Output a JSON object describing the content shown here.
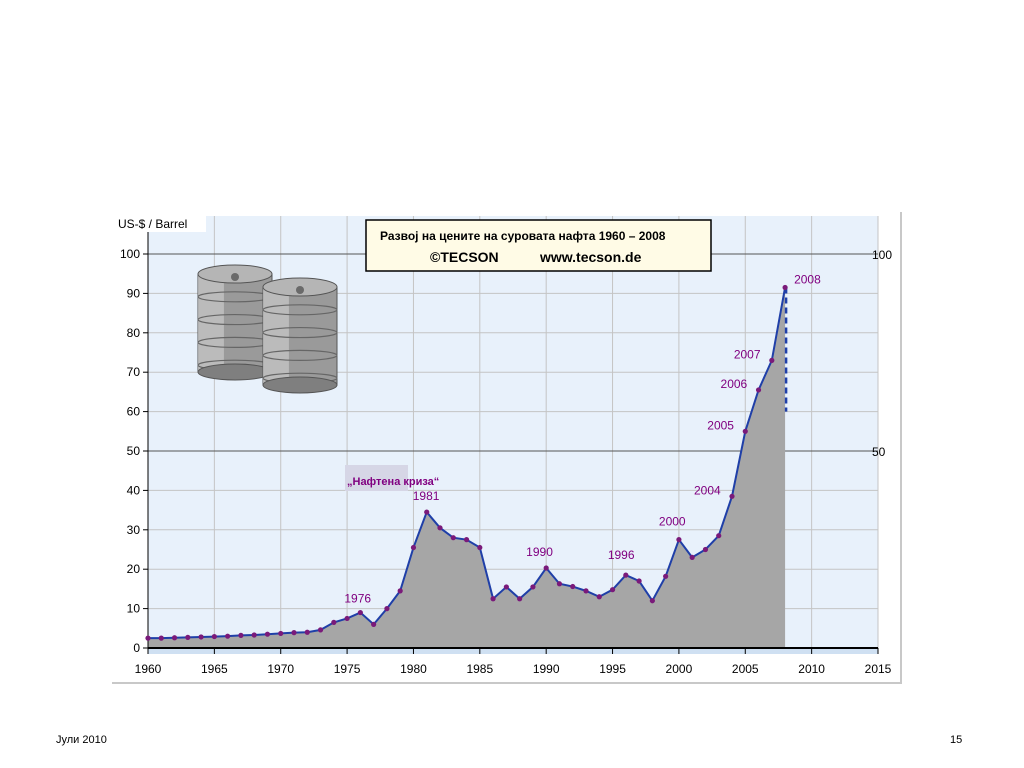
{
  "footer": {
    "date": "Јули 2010",
    "page": "15"
  },
  "colors": {
    "plot_bg": "#e8f1fb",
    "area_fill": "#a6a6a6",
    "line": "#1f3fa8",
    "marker": "#7a1a7a",
    "year_label": "#800080",
    "title_box_bg": "#fffbe6"
  },
  "chart_data": {
    "type": "area",
    "title": "Развој на цените на суровата нафта 1960 – 2008",
    "subtitle_copyright": "©TECSON",
    "subtitle_url": "www.tecson.de",
    "ylabel": "US-$ / Barrel",
    "xlabel": "",
    "xlim": [
      1960,
      2015
    ],
    "ylim": [
      0,
      100
    ],
    "x_ticks": [
      1960,
      1965,
      1970,
      1975,
      1980,
      1985,
      1990,
      1995,
      2000,
      2005,
      2010,
      2015
    ],
    "y_ticks": [
      0,
      10,
      20,
      30,
      40,
      50,
      60,
      70,
      80,
      90,
      100
    ],
    "right_axis_labels": [
      100,
      50
    ],
    "grid": true,
    "annotation": "„Нафтена криза“",
    "year_labels": [
      "1976",
      "1981",
      "1990",
      "1996",
      "2000",
      "2004",
      "2005",
      "2006",
      "2007",
      "2008"
    ],
    "series": [
      {
        "x": [
          1960,
          1961,
          1962,
          1963,
          1964,
          1965,
          1966,
          1967,
          1968,
          1969,
          1970,
          1971,
          1972,
          1973,
          1974,
          1975,
          1976,
          1977,
          1978,
          1979,
          1980,
          1981,
          1982,
          1983,
          1984,
          1985,
          1986,
          1987,
          1988,
          1989,
          1990,
          1991,
          1992,
          1993,
          1994,
          1995,
          1996,
          1997,
          1998,
          1999,
          2000,
          2001,
          2002,
          2003,
          2004,
          2005,
          2006,
          2007,
          2008
        ],
        "values": [
          2.5,
          2.5,
          2.6,
          2.7,
          2.8,
          2.9,
          3.0,
          3.2,
          3.3,
          3.5,
          3.7,
          3.9,
          4.0,
          4.6,
          6.5,
          7.5,
          9.0,
          6.0,
          10.0,
          14.5,
          25.5,
          34.5,
          30.5,
          28.0,
          27.5,
          25.5,
          12.5,
          15.5,
          12.5,
          15.5,
          20.3,
          16.3,
          15.6,
          14.5,
          13.0,
          14.8,
          18.5,
          17.0,
          12.0,
          18.2,
          27.5,
          23.0,
          25.0,
          28.5,
          38.5,
          55.0,
          65.5,
          73.0,
          91.5
        ],
        "drop_to": 60
      }
    ]
  }
}
